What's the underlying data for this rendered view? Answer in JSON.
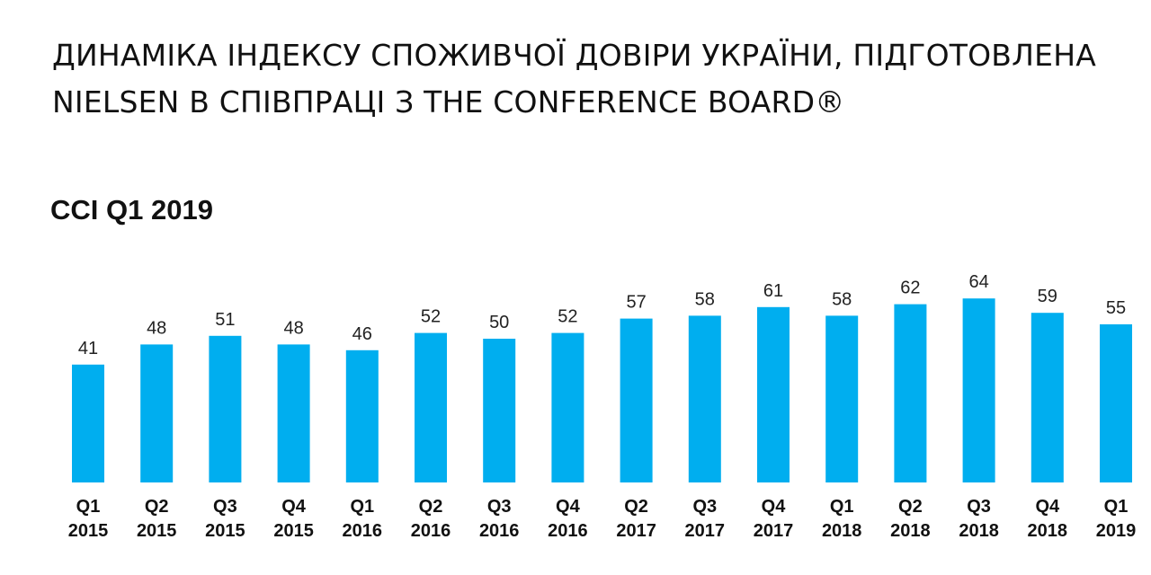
{
  "header": {
    "title_line1": "ДИНАМІКА ІНДЕКСУ СПОЖИВЧОЇ ДОВІРИ УКРАЇНИ, ПІДГОТОВЛЕНА",
    "title_line2": "NIELSEN В СПІВПРАЦІ З THE CONFERENCE BOARD®"
  },
  "chart_data": {
    "type": "bar",
    "title": "CCI Q1 2019",
    "categories": [
      [
        "Q1",
        "2015"
      ],
      [
        "Q2",
        "2015"
      ],
      [
        "Q3",
        "2015"
      ],
      [
        "Q4",
        "2015"
      ],
      [
        "Q1",
        "2016"
      ],
      [
        "Q2",
        "2016"
      ],
      [
        "Q3",
        "2016"
      ],
      [
        "Q4",
        "2016"
      ],
      [
        "Q2",
        "2017"
      ],
      [
        "Q3",
        "2017"
      ],
      [
        "Q4",
        "2017"
      ],
      [
        "Q1",
        "2018"
      ],
      [
        "Q2",
        "2018"
      ],
      [
        "Q3",
        "2018"
      ],
      [
        "Q4",
        "2018"
      ],
      [
        "Q1",
        "2019"
      ]
    ],
    "values": [
      41,
      48,
      51,
      48,
      46,
      52,
      50,
      52,
      57,
      58,
      61,
      58,
      62,
      64,
      59,
      55
    ],
    "bar_color": "#00AEEF",
    "grid": false,
    "legend": false,
    "data_labels": true
  }
}
